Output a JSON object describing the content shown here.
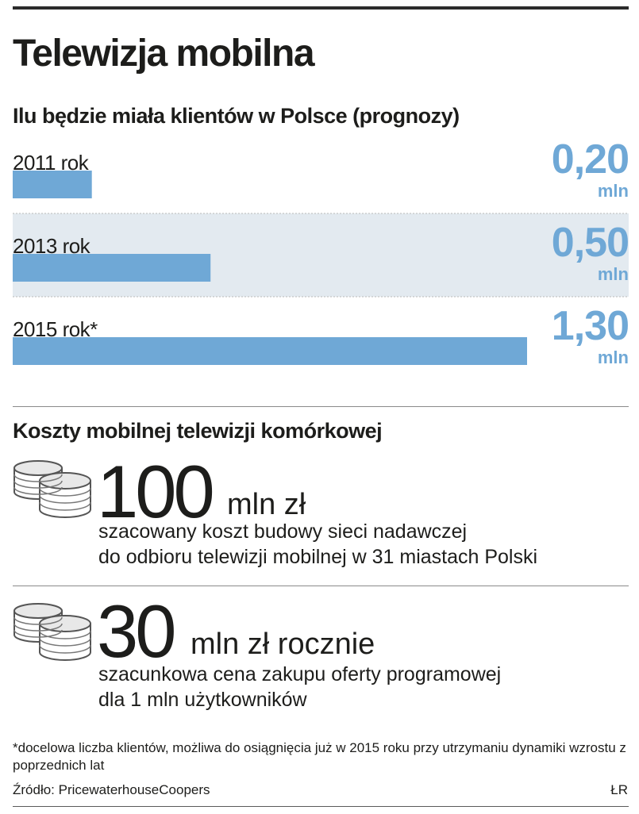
{
  "title": "Telewizja mobilna",
  "chart_data": {
    "type": "bar",
    "orientation": "horizontal",
    "title": "Ilu będzie miała klientów w Polsce (prognozy)",
    "categories": [
      "2011 rok",
      "2013 rok",
      "2015 rok*"
    ],
    "values": [
      0.2,
      0.5,
      1.3
    ],
    "value_labels": [
      "0,20",
      "0,50",
      "1,30"
    ],
    "unit": "mln",
    "bar_color": "#6fa8d6",
    "value_color": "#6fa8d6",
    "stripe_color": "#e3eaf0",
    "xlim": [
      0,
      1.3
    ],
    "grid": false
  },
  "costs": {
    "heading": "Koszty mobilnej telewizji komórkowej",
    "items": [
      {
        "value": "100",
        "unit": "mln zł",
        "description": "szacowany koszt budowy sieci nadawczej\ndo odbioru telewizji mobilnej w 31 miastach Polski",
        "icon": "coins-icon"
      },
      {
        "value": "30",
        "unit": "mln zł rocznie",
        "description": "szacunkowa cena zakupu oferty programowej\ndla 1 mln użytkowników",
        "icon": "coins-icon"
      }
    ]
  },
  "footnote": "*docelowa liczba klientów, możliwa do osiągnięcia już w 2015 roku przy utrzymaniu dynamiki wzrostu z poprzednich lat",
  "source": "Źródło: PricewaterhouseCoopers",
  "author": "ŁR"
}
